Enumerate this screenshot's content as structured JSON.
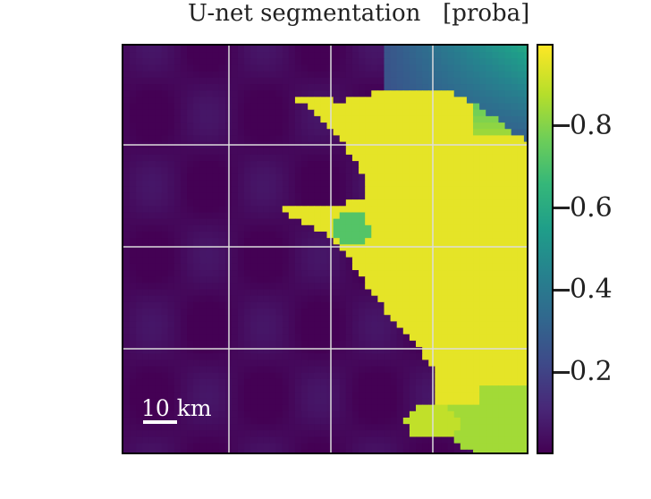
{
  "chart_data": {
    "type": "heatmap",
    "title": "U-net segmentation",
    "unit_label": "[proba]",
    "colormap": "viridis",
    "colorbar": {
      "ticks": [
        0.2,
        0.4,
        0.6,
        0.8
      ],
      "tick_labels": [
        "0.2",
        "0.4",
        "0.6",
        "0.8"
      ],
      "range": [
        0.0,
        1.0
      ]
    },
    "grid": true,
    "scale_bar_label": "10 km",
    "description_regions": [
      {
        "name": "high-probability-region",
        "value": 0.97
      },
      {
        "name": "background",
        "value": 0.02
      },
      {
        "name": "transition-zone",
        "value": 0.6
      }
    ]
  }
}
